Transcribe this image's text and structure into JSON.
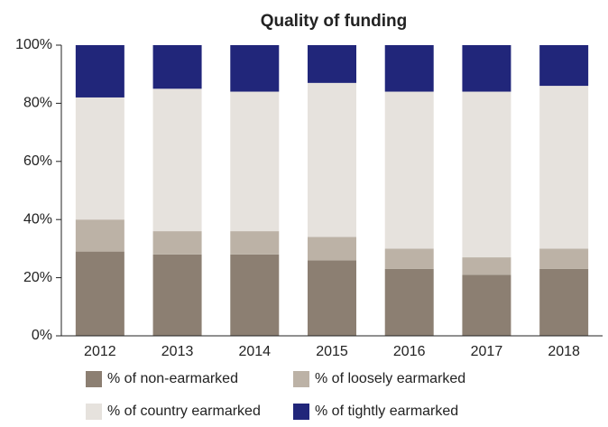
{
  "chart_data": {
    "type": "stacked_bar",
    "title": "Quality of funding",
    "categories": [
      "2012",
      "2013",
      "2014",
      "2015",
      "2016",
      "2017",
      "2018"
    ],
    "series": [
      {
        "name": "% of non-earmarked",
        "color": "#8c7f72",
        "values": [
          29,
          28,
          28,
          26,
          23,
          21,
          23
        ]
      },
      {
        "name": "% of loosely earmarked",
        "color": "#bcb2a6",
        "values": [
          11,
          8,
          8,
          8,
          7,
          6,
          7
        ]
      },
      {
        "name": "% of country earmarked",
        "color": "#e6e2dd",
        "values": [
          42,
          49,
          48,
          53,
          54,
          57,
          56
        ]
      },
      {
        "name": "% of tightly earmarked",
        "color": "#21267a",
        "values": [
          18,
          15,
          16,
          13,
          16,
          16,
          14
        ]
      }
    ],
    "ylim": [
      0,
      100
    ],
    "yticks": [
      {
        "value": 0,
        "label": "0%"
      },
      {
        "value": 20,
        "label": "20%"
      },
      {
        "value": 40,
        "label": "40%"
      },
      {
        "value": 60,
        "label": "60%"
      },
      {
        "value": 80,
        "label": "80%"
      },
      {
        "value": 100,
        "label": "100%"
      }
    ]
  }
}
